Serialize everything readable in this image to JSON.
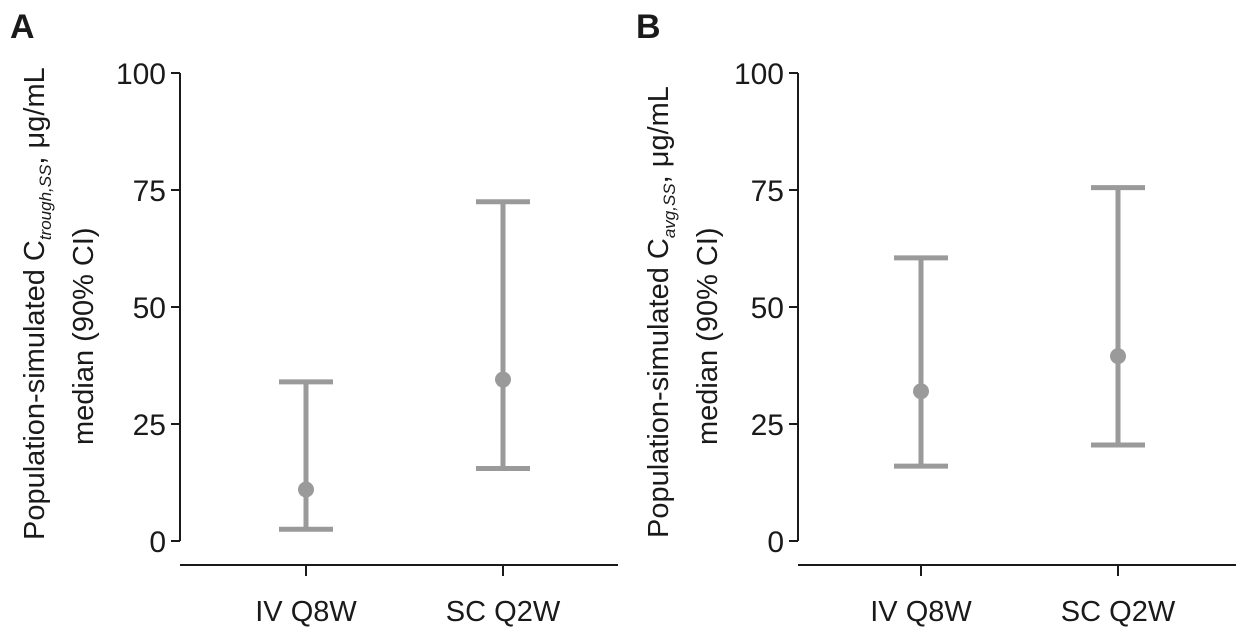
{
  "chart_data": [
    {
      "type": "errorbar",
      "panel": "A",
      "ylabel": {
        "prefix": "Population-simulated C",
        "subscript": "trough,SS",
        "suffix": ", μg/mL",
        "line2": "median (90% CI)"
      },
      "ylim": [
        0,
        100
      ],
      "yticks": [
        "0",
        "25",
        "50",
        "75",
        "100"
      ],
      "categories": [
        "IV Q8W",
        "SC Q2W"
      ],
      "median": [
        11,
        34.5
      ],
      "ci_low": [
        2.5,
        15.5
      ],
      "ci_high": [
        34,
        72.5
      ],
      "color": "#9a9a9a",
      "grid": false
    },
    {
      "type": "errorbar",
      "panel": "B",
      "ylabel": {
        "prefix": "Population-simulated C",
        "subscript": "avg,SS",
        "suffix": ", μg/mL",
        "line2": "median (90% CI)"
      },
      "ylim": [
        0,
        100
      ],
      "yticks": [
        "0",
        "25",
        "50",
        "75",
        "100"
      ],
      "categories": [
        "IV Q8W",
        "SC Q2W"
      ],
      "median": [
        32,
        39.5
      ],
      "ci_low": [
        16,
        20.5
      ],
      "ci_high": [
        60.5,
        75.5
      ],
      "color": "#9a9a9a",
      "grid": false
    }
  ]
}
